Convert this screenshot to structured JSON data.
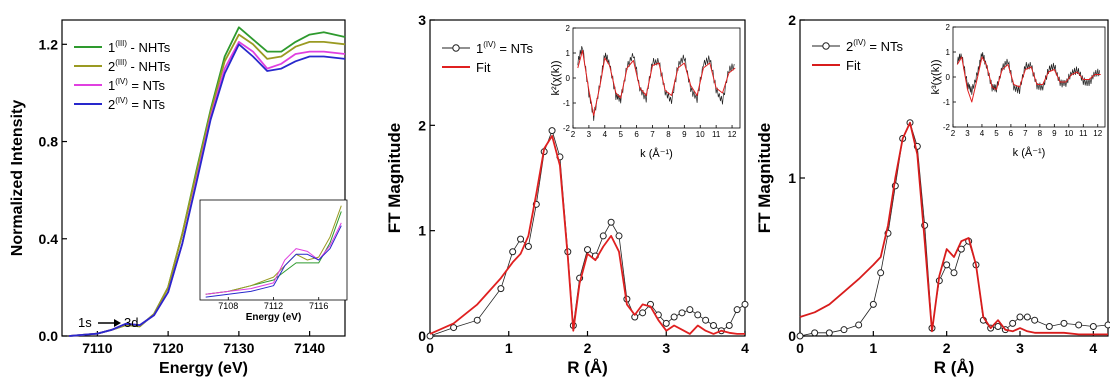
{
  "chart_data": [
    {
      "type": "line",
      "xlabel": "Energy (eV)",
      "ylabel": "Normalized Intensity",
      "xlim": [
        7105,
        7145
      ],
      "ylim": [
        0,
        1.3
      ],
      "xticks": [
        "7110",
        "7120",
        "7130",
        "7140"
      ],
      "yticks": [
        "0.0",
        "0.4",
        "0.8",
        "1.2"
      ],
      "legend_position": "top-left",
      "annotation": {
        "from": "1s",
        "to": "3d",
        "x": 7114,
        "y": 0.06
      },
      "series": [
        {
          "name": "1",
          "superscript": "(III)",
          "suffix": " - NHTs",
          "color": "#2e9a2e",
          "style": "line",
          "x": [
            7106,
            7110,
            7112,
            7114,
            7116,
            7118,
            7120,
            7122,
            7124,
            7126,
            7128,
            7130,
            7132,
            7134,
            7136,
            7138,
            7140,
            7142,
            7145
          ],
          "y": [
            0.0,
            0.01,
            0.025,
            0.045,
            0.04,
            0.09,
            0.2,
            0.42,
            0.68,
            0.93,
            1.15,
            1.27,
            1.22,
            1.17,
            1.17,
            1.21,
            1.24,
            1.25,
            1.23
          ]
        },
        {
          "name": "2",
          "superscript": "(III)",
          "suffix": " - NHTs",
          "color": "#9a9a22",
          "style": "line",
          "x": [
            7106,
            7110,
            7112,
            7114,
            7116,
            7118,
            7120,
            7122,
            7124,
            7126,
            7128,
            7130,
            7132,
            7134,
            7136,
            7138,
            7140,
            7142,
            7145
          ],
          "y": [
            0.0,
            0.01,
            0.025,
            0.045,
            0.04,
            0.09,
            0.2,
            0.42,
            0.67,
            0.92,
            1.13,
            1.24,
            1.2,
            1.14,
            1.15,
            1.19,
            1.21,
            1.21,
            1.2
          ]
        },
        {
          "name": "1",
          "superscript": "(IV)",
          "suffix": " = NTs",
          "color": "#e040e0",
          "style": "line",
          "x": [
            7106,
            7110,
            7112,
            7114,
            7116,
            7118,
            7120,
            7122,
            7124,
            7126,
            7128,
            7130,
            7132,
            7134,
            7136,
            7138,
            7140,
            7142,
            7145
          ],
          "y": [
            0.0,
            0.01,
            0.025,
            0.05,
            0.045,
            0.085,
            0.18,
            0.38,
            0.64,
            0.9,
            1.1,
            1.21,
            1.17,
            1.1,
            1.12,
            1.16,
            1.17,
            1.17,
            1.16
          ]
        },
        {
          "name": "2",
          "superscript": "(IV)",
          "suffix": " = NTs",
          "color": "#2828cc",
          "style": "line",
          "x": [
            7106,
            7110,
            7112,
            7114,
            7116,
            7118,
            7120,
            7122,
            7124,
            7126,
            7128,
            7130,
            7132,
            7134,
            7136,
            7138,
            7140,
            7142,
            7145
          ],
          "y": [
            0.0,
            0.01,
            0.025,
            0.05,
            0.045,
            0.085,
            0.18,
            0.38,
            0.63,
            0.89,
            1.08,
            1.2,
            1.15,
            1.09,
            1.1,
            1.13,
            1.15,
            1.15,
            1.14
          ]
        }
      ],
      "inset": {
        "xlabel": "Energy (eV)",
        "xlim": [
          7105.5,
          7118.5
        ],
        "ylim": [
          0,
          0.35
        ],
        "xticks": [
          "7108",
          "7112",
          "7116"
        ],
        "series": [
          {
            "color": "#2e9a2e",
            "x": [
              7106,
              7108,
              7110,
              7112,
              7113,
              7114,
              7115,
              7116,
              7117,
              7118
            ],
            "y": [
              0.02,
              0.03,
              0.05,
              0.07,
              0.1,
              0.13,
              0.13,
              0.13,
              0.2,
              0.31
            ]
          },
          {
            "color": "#9a9a22",
            "x": [
              7106,
              7108,
              7110,
              7112,
              7113,
              7114,
              7115,
              7116,
              7117,
              7118
            ],
            "y": [
              0.02,
              0.03,
              0.05,
              0.08,
              0.12,
              0.16,
              0.14,
              0.15,
              0.22,
              0.33
            ]
          },
          {
            "color": "#e040e0",
            "x": [
              7106,
              7108,
              7110,
              7112,
              7113,
              7114,
              7115,
              7116,
              7117,
              7118
            ],
            "y": [
              0.02,
              0.03,
              0.04,
              0.06,
              0.14,
              0.18,
              0.17,
              0.14,
              0.19,
              0.27
            ]
          },
          {
            "color": "#2828cc",
            "x": [
              7106,
              7108,
              7110,
              7112,
              7113,
              7114,
              7115,
              7116,
              7117,
              7118
            ],
            "y": [
              0.01,
              0.02,
              0.03,
              0.05,
              0.12,
              0.16,
              0.16,
              0.14,
              0.18,
              0.26
            ]
          }
        ]
      }
    },
    {
      "type": "line",
      "xlabel": "R (Å)",
      "ylabel": "FT Magnitude",
      "xlim": [
        0,
        4
      ],
      "ylim": [
        0,
        3
      ],
      "xticks": [
        "0",
        "1",
        "2",
        "3",
        "4"
      ],
      "yticks": [
        "0",
        "1",
        "2",
        "3"
      ],
      "legend_position": "top-left",
      "series": [
        {
          "name": "1",
          "superscript": "(IV)",
          "suffix": " = NTs",
          "color": "#222222",
          "style": "circles",
          "x": [
            0.0,
            0.3,
            0.6,
            0.9,
            1.05,
            1.15,
            1.25,
            1.35,
            1.45,
            1.55,
            1.65,
            1.75,
            1.82,
            1.9,
            2.0,
            2.1,
            2.2,
            2.3,
            2.4,
            2.5,
            2.6,
            2.7,
            2.8,
            2.9,
            3.0,
            3.1,
            3.2,
            3.3,
            3.4,
            3.5,
            3.6,
            3.7,
            3.8,
            3.9,
            4.0
          ],
          "y": [
            0.0,
            0.08,
            0.15,
            0.45,
            0.8,
            0.92,
            0.85,
            1.25,
            1.75,
            1.95,
            1.7,
            0.8,
            0.1,
            0.55,
            0.82,
            0.76,
            0.95,
            1.08,
            0.95,
            0.35,
            0.18,
            0.22,
            0.3,
            0.2,
            0.12,
            0.18,
            0.22,
            0.25,
            0.2,
            0.15,
            0.1,
            0.05,
            0.1,
            0.25,
            0.3
          ]
        },
        {
          "name": "Fit",
          "color": "#e02020",
          "style": "line",
          "x": [
            0.0,
            0.3,
            0.6,
            0.9,
            1.05,
            1.15,
            1.25,
            1.35,
            1.45,
            1.55,
            1.65,
            1.75,
            1.82,
            1.9,
            2.0,
            2.1,
            2.2,
            2.3,
            2.4,
            2.5,
            2.6,
            2.7,
            2.8,
            2.9,
            3.0,
            3.1,
            3.2,
            3.3,
            3.4,
            3.5,
            3.6,
            3.7,
            3.8,
            3.9,
            4.0
          ],
          "y": [
            0.02,
            0.12,
            0.3,
            0.55,
            0.7,
            0.78,
            0.95,
            1.35,
            1.78,
            1.9,
            1.62,
            0.75,
            0.05,
            0.5,
            0.78,
            0.72,
            0.85,
            0.95,
            0.8,
            0.3,
            0.2,
            0.3,
            0.28,
            0.15,
            0.05,
            0.1,
            0.06,
            0.02,
            0.1,
            0.05,
            0.02,
            0.05,
            0.03,
            0.02,
            0.02
          ]
        }
      ],
      "inset": {
        "xlabel": "k (Å⁻¹)",
        "ylabel": "k²(χ(k))",
        "xlim": [
          2,
          12.5
        ],
        "ylim": [
          -2,
          2
        ],
        "xticks": [
          "2",
          "3",
          "4",
          "5",
          "6",
          "7",
          "8",
          "9",
          "10",
          "11",
          "12"
        ],
        "yticks": [
          "-2",
          "-1",
          "0",
          "1",
          "2"
        ],
        "series": [
          {
            "name": "1",
            "color": "#222222",
            "style": "noisy",
            "x": [
              2.3,
              2.6,
              3.0,
              3.3,
              3.7,
              4.0,
              4.3,
              4.7,
              5.0,
              5.4,
              5.8,
              6.2,
              6.6,
              7.0,
              7.4,
              7.8,
              8.2,
              8.6,
              9.0,
              9.4,
              9.8,
              10.2,
              10.6,
              11.0,
              11.4,
              11.8,
              12.2
            ],
            "y": [
              0.6,
              1.3,
              -0.6,
              -1.6,
              -0.2,
              0.9,
              0.6,
              -0.7,
              -0.9,
              0.5,
              0.9,
              -0.4,
              -0.8,
              0.6,
              0.7,
              -0.6,
              -0.9,
              0.5,
              0.8,
              -0.4,
              -0.9,
              0.6,
              0.8,
              -0.5,
              -0.9,
              0.3,
              0.5
            ]
          },
          {
            "name": "Fit",
            "color": "#e02020",
            "style": "line",
            "x": [
              2.3,
              2.6,
              3.0,
              3.3,
              3.7,
              4.0,
              4.3,
              4.7,
              5.0,
              5.4,
              5.8,
              6.2,
              6.6,
              7.0,
              7.4,
              7.8,
              8.2,
              8.6,
              9.0,
              9.4,
              9.8,
              10.2,
              10.6,
              11.0,
              11.4,
              11.8,
              12.2
            ],
            "y": [
              0.4,
              1.1,
              -0.5,
              -1.5,
              -0.3,
              0.8,
              0.5,
              -0.6,
              -0.8,
              0.4,
              0.7,
              -0.4,
              -0.7,
              0.5,
              0.6,
              -0.5,
              -0.7,
              0.4,
              0.6,
              -0.3,
              -0.7,
              0.4,
              0.6,
              -0.4,
              -0.6,
              0.2,
              0.4
            ]
          }
        ]
      }
    },
    {
      "type": "line",
      "xlabel": "R (Å)",
      "ylabel": "FT Magnitude",
      "xlim": [
        0,
        4.2
      ],
      "ylim": [
        0,
        2
      ],
      "xticks": [
        "0",
        "1",
        "2",
        "3",
        "4"
      ],
      "yticks": [
        "0",
        "1",
        "2"
      ],
      "legend_position": "top-left",
      "series": [
        {
          "name": "2",
          "superscript": "(IV)",
          "suffix": " = NTs",
          "color": "#222222",
          "style": "circles",
          "x": [
            0.0,
            0.2,
            0.4,
            0.6,
            0.8,
            1.0,
            1.1,
            1.2,
            1.3,
            1.4,
            1.5,
            1.6,
            1.7,
            1.8,
            1.9,
            2.0,
            2.1,
            2.2,
            2.3,
            2.4,
            2.5,
            2.6,
            2.7,
            2.8,
            2.9,
            3.0,
            3.1,
            3.2,
            3.4,
            3.6,
            3.8,
            4.0,
            4.2
          ],
          "y": [
            0.0,
            0.02,
            0.02,
            0.04,
            0.07,
            0.2,
            0.4,
            0.65,
            0.95,
            1.25,
            1.35,
            1.2,
            0.7,
            0.05,
            0.35,
            0.45,
            0.4,
            0.55,
            0.6,
            0.45,
            0.1,
            0.05,
            0.06,
            0.04,
            0.08,
            0.12,
            0.12,
            0.1,
            0.06,
            0.08,
            0.07,
            0.06,
            0.07
          ]
        },
        {
          "name": "Fit",
          "color": "#d81c1c",
          "style": "line",
          "x": [
            0.0,
            0.2,
            0.4,
            0.6,
            0.8,
            1.0,
            1.1,
            1.2,
            1.3,
            1.4,
            1.5,
            1.6,
            1.7,
            1.8,
            1.9,
            2.0,
            2.1,
            2.2,
            2.3,
            2.4,
            2.5,
            2.6,
            2.7,
            2.8,
            2.9,
            3.0,
            3.1,
            3.2,
            3.4,
            3.6,
            3.8,
            4.0,
            4.2
          ],
          "y": [
            0.12,
            0.15,
            0.2,
            0.28,
            0.36,
            0.45,
            0.5,
            0.7,
            1.0,
            1.25,
            1.35,
            1.15,
            0.6,
            0.03,
            0.38,
            0.55,
            0.5,
            0.6,
            0.62,
            0.45,
            0.12,
            0.05,
            0.1,
            0.04,
            0.03,
            0.05,
            0.03,
            0.02,
            0.02,
            0.02,
            0.01,
            0.01,
            0.01
          ]
        }
      ],
      "inset": {
        "xlabel": "k (Å⁻¹)",
        "ylabel": "k³(χ(k))",
        "xlim": [
          2,
          12.5
        ],
        "ylim": [
          -2,
          2
        ],
        "xticks": [
          "2",
          "3",
          "4",
          "5",
          "6",
          "7",
          "8",
          "9",
          "10",
          "11",
          "12"
        ],
        "yticks": [
          "-2",
          "-1",
          "0",
          "1",
          "2"
        ],
        "series": [
          {
            "name": "2",
            "color": "#222222",
            "style": "noisy",
            "x": [
              2.3,
              2.6,
              3.0,
              3.3,
              3.7,
              4.0,
              4.3,
              4.7,
              5.0,
              5.4,
              5.8,
              6.2,
              6.6,
              7.0,
              7.4,
              7.8,
              8.2,
              8.6,
              9.0,
              9.4,
              9.8,
              10.2,
              10.6,
              11.0,
              11.4,
              11.8,
              12.2
            ],
            "y": [
              0.6,
              0.9,
              -0.3,
              -0.6,
              0.2,
              0.9,
              0.5,
              -0.4,
              -0.5,
              0.4,
              0.6,
              -0.4,
              -0.5,
              0.4,
              0.5,
              -0.4,
              -0.4,
              0.3,
              0.4,
              -0.2,
              -0.3,
              0.2,
              0.3,
              -0.2,
              -0.2,
              0.1,
              0.2
            ]
          },
          {
            "name": "Fit",
            "color": "#e02020",
            "style": "line",
            "x": [
              2.3,
              2.6,
              3.0,
              3.3,
              3.7,
              4.0,
              4.3,
              4.7,
              5.0,
              5.4,
              5.8,
              6.2,
              6.6,
              7.0,
              7.4,
              7.8,
              8.2,
              8.6,
              9.0,
              9.4,
              9.8,
              10.2,
              10.6,
              11.0,
              11.4,
              11.8,
              12.2
            ],
            "y": [
              0.5,
              0.8,
              -0.5,
              -1.0,
              0.0,
              0.8,
              0.5,
              -0.4,
              -0.5,
              0.3,
              0.5,
              -0.3,
              -0.4,
              0.3,
              0.4,
              -0.3,
              -0.3,
              0.2,
              0.3,
              -0.2,
              -0.2,
              0.1,
              0.2,
              -0.1,
              -0.1,
              0.1,
              0.1
            ]
          }
        ]
      }
    }
  ]
}
